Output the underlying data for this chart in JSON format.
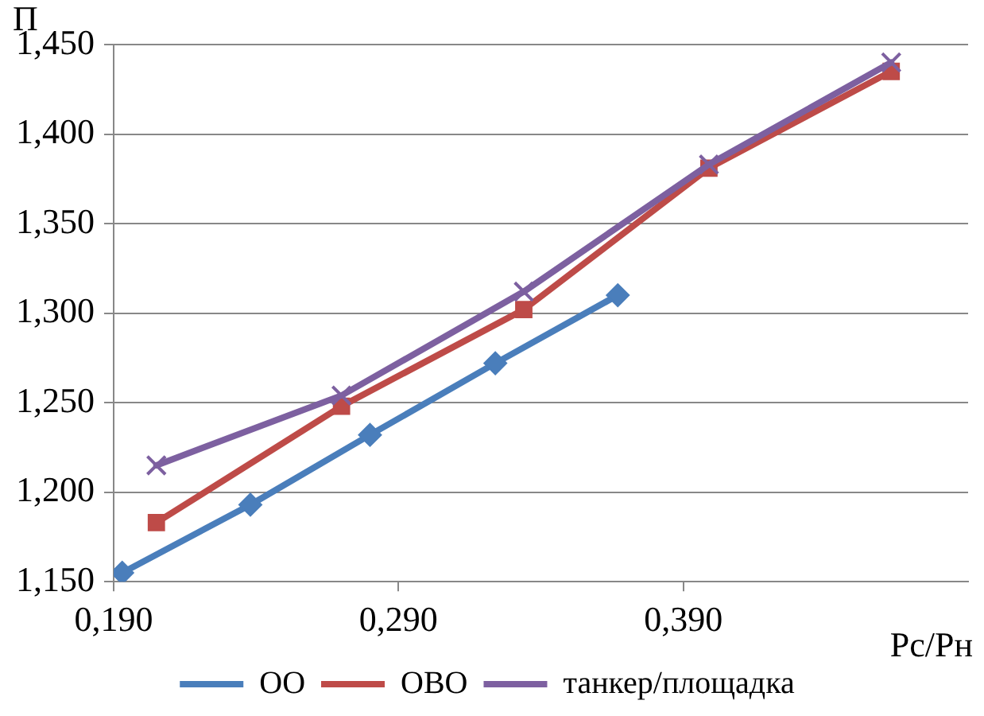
{
  "chart_data": {
    "type": "line",
    "xlabel": "Рс/Рн",
    "ylabel": "П",
    "xlim": [
      0.19,
      0.49
    ],
    "xticks": [
      {
        "value": 0.19,
        "label": "0,190"
      },
      {
        "value": 0.29,
        "label": "0,290"
      },
      {
        "value": 0.39,
        "label": "0,390"
      }
    ],
    "ylim": [
      1.15,
      1.45
    ],
    "yticks": [
      {
        "value": 1.15,
        "label": "1,150"
      },
      {
        "value": 1.2,
        "label": "1,200"
      },
      {
        "value": 1.25,
        "label": "1,250"
      },
      {
        "value": 1.3,
        "label": "1,300"
      },
      {
        "value": 1.35,
        "label": "1,350"
      },
      {
        "value": 1.4,
        "label": "1,400"
      },
      {
        "value": 1.45,
        "label": "1,450"
      }
    ],
    "grid": "y",
    "legend": "bottom",
    "line_style": "solid",
    "series": [
      {
        "name": "ОО",
        "color": "#4a7ebb",
        "marker": "diamond",
        "x": [
          0.193,
          0.238,
          0.28,
          0.324,
          0.367
        ],
        "values": [
          1.155,
          1.193,
          1.232,
          1.272,
          1.31
        ]
      },
      {
        "name": "ОВО",
        "color": "#be4b48",
        "marker": "square",
        "x": [
          0.205,
          0.27,
          0.334,
          0.399,
          0.463
        ],
        "values": [
          1.183,
          1.248,
          1.302,
          1.381,
          1.435
        ]
      },
      {
        "name": "танкер/площадка",
        "color": "#7d60a0",
        "marker": "cross",
        "x": [
          0.205,
          0.27,
          0.334,
          0.399,
          0.463
        ],
        "values": [
          1.215,
          1.254,
          1.312,
          1.383,
          1.44
        ]
      }
    ]
  }
}
